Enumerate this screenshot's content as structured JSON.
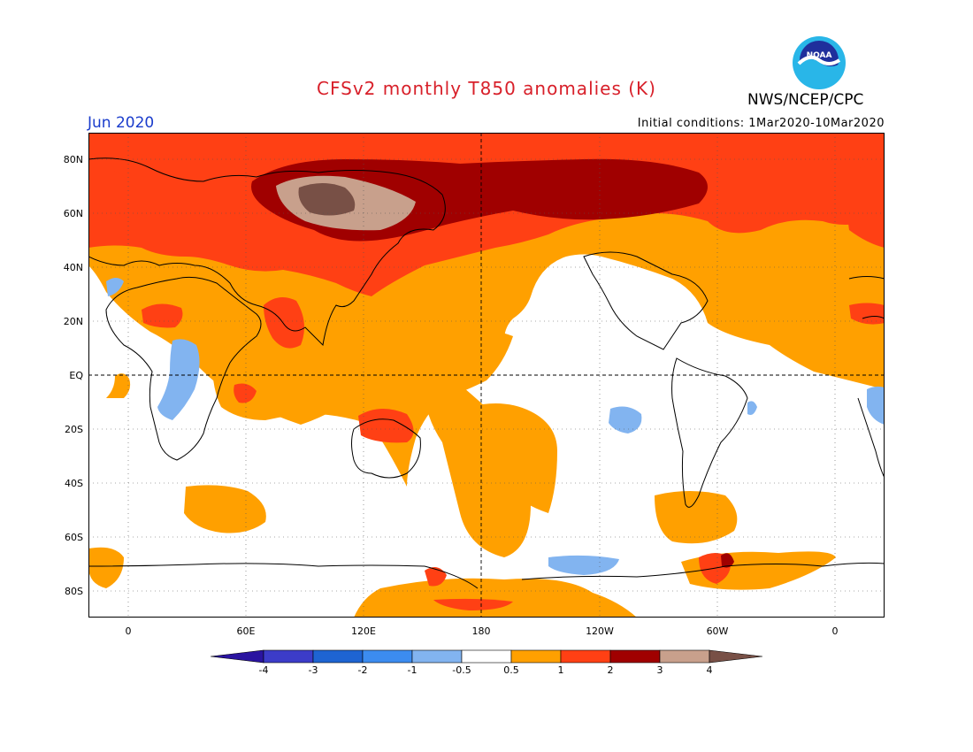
{
  "header": {
    "title": "CFSv2 monthly T850 anomalies (K)",
    "month": "Jun 2020",
    "initial_conditions": "Initial conditions: 1Mar2020-10Mar2020",
    "agency": "NWS/NCEP/CPC",
    "logo_text": "NOAA"
  },
  "axes": {
    "lat_labels": [
      "80N",
      "60N",
      "40N",
      "20N",
      "EQ",
      "20S",
      "40S",
      "60S",
      "80S"
    ],
    "lon_labels": [
      "0",
      "60E",
      "120E",
      "180",
      "120W",
      "60W",
      "0"
    ]
  },
  "colorbar": {
    "labels": [
      "-4",
      "-3",
      "-2",
      "-1",
      "-0.5",
      "0.5",
      "1",
      "2",
      "3",
      "4"
    ],
    "colors": [
      "#2a14a0",
      "#3c3cc8",
      "#1e64d2",
      "#3c8cf0",
      "#82b4f0",
      "#ffffff",
      "#ffa000",
      "#ff4014",
      "#a00000",
      "#c8a08c",
      "#785046"
    ]
  }
}
